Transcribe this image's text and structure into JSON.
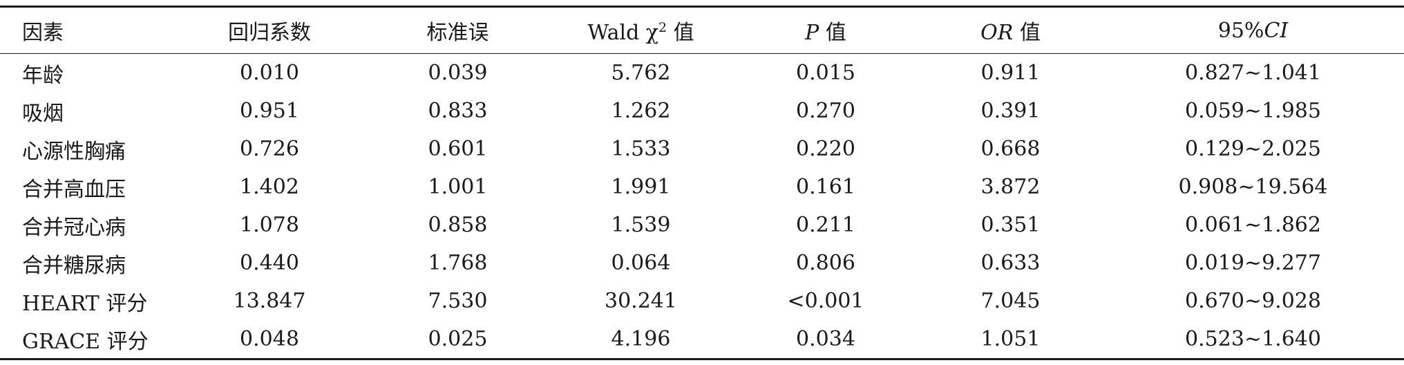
{
  "table": {
    "headers": [
      {
        "text": "因素"
      },
      {
        "text": "回归系数"
      },
      {
        "text": "标准误"
      },
      {
        "pre": "Wald χ",
        "sup": "2",
        "post": " 值"
      },
      {
        "ital": "P",
        "post": " 值"
      },
      {
        "ital": "OR",
        "post": " 值"
      },
      {
        "pre": "95%",
        "ital": "CI"
      }
    ],
    "rows": [
      [
        "年龄",
        "0.010",
        "0.039",
        "5.762",
        "0.015",
        "0.911",
        "0.827~1.041"
      ],
      [
        "吸烟",
        "0.951",
        "0.833",
        "1.262",
        "0.270",
        "0.391",
        "0.059~1.985"
      ],
      [
        "心源性胸痛",
        "0.726",
        "0.601",
        "1.533",
        "0.220",
        "0.668",
        "0.129~2.025"
      ],
      [
        "合并高血压",
        "1.402",
        "1.001",
        "1.991",
        "0.161",
        "3.872",
        "0.908~19.564"
      ],
      [
        "合并冠心病",
        "1.078",
        "0.858",
        "1.539",
        "0.211",
        "0.351",
        "0.061~1.862"
      ],
      [
        "合并糖尿病",
        "0.440",
        "1.768",
        "0.064",
        "0.806",
        "0.633",
        "0.019~9.277"
      ],
      [
        "HEART 评分",
        "13.847",
        "7.530",
        "30.241",
        "<0.001",
        "7.045",
        "0.670~9.028"
      ],
      [
        "GRACE 评分",
        "0.048",
        "0.025",
        "4.196",
        "0.034",
        "1.051",
        "0.523~1.640"
      ]
    ]
  }
}
